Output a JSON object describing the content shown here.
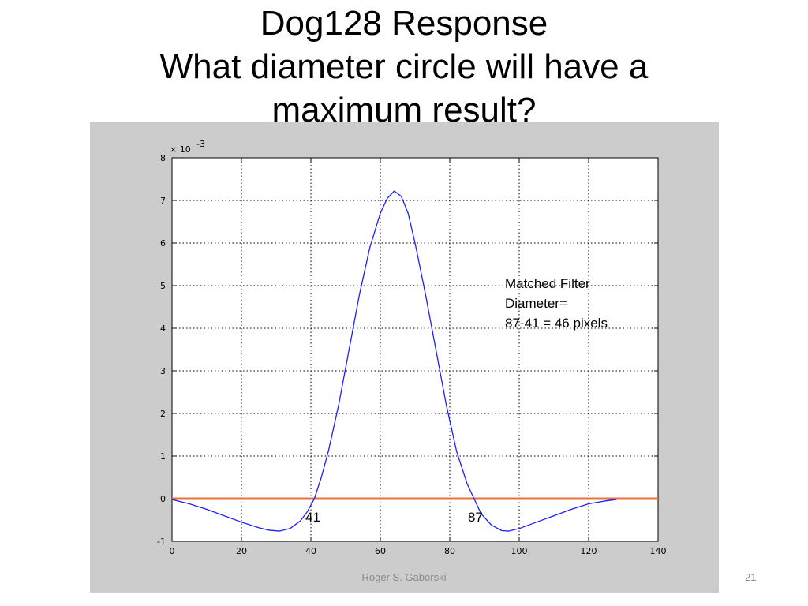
{
  "slide": {
    "title_line1": "Dog128 Response",
    "title_line2": "What diameter circle will have a",
    "title_line3": "maximum result?",
    "footer": "Roger S. Gaborski",
    "page_number": "21"
  },
  "annotation": {
    "line1": "Matched Filter",
    "line2": "Diameter=",
    "line3": "87-41 = 46 pixels",
    "marker_left": "41",
    "marker_right": "87"
  },
  "chart_data": {
    "type": "line",
    "xlim": [
      0,
      140
    ],
    "ylim": [
      -1,
      8
    ],
    "y_multiplier": "× 10",
    "y_multiplier_exponent": "-3",
    "x_ticks": [
      "0",
      "20",
      "40",
      "60",
      "80",
      "100",
      "120",
      "140"
    ],
    "y_ticks": [
      "-1",
      "0",
      "1",
      "2",
      "3",
      "4",
      "5",
      "6",
      "7",
      "8"
    ],
    "grid": true,
    "series": [
      {
        "color": "#1f1fff",
        "x": [
          0,
          5,
          10,
          15,
          20,
          25,
          28,
          31,
          34,
          37,
          39,
          41,
          43,
          45,
          48,
          51,
          54,
          57,
          60,
          62,
          64,
          66,
          68,
          70,
          73,
          76,
          79,
          82,
          85,
          87,
          89,
          92,
          95,
          97,
          100,
          105,
          110,
          115,
          120,
          125,
          128
        ],
        "y": [
          -0.02,
          -0.12,
          -0.25,
          -0.4,
          -0.55,
          -0.68,
          -0.74,
          -0.76,
          -0.7,
          -0.52,
          -0.3,
          0.0,
          0.5,
          1.1,
          2.2,
          3.5,
          4.8,
          5.9,
          6.7,
          7.05,
          7.22,
          7.1,
          6.7,
          6.0,
          4.8,
          3.5,
          2.2,
          1.1,
          0.35,
          0.0,
          -0.35,
          -0.62,
          -0.75,
          -0.76,
          -0.7,
          -0.55,
          -0.4,
          -0.25,
          -0.12,
          -0.05,
          -0.02
        ]
      },
      {
        "color": "#e8733a",
        "x": [
          0,
          140
        ],
        "y": [
          0,
          0
        ]
      }
    ]
  }
}
